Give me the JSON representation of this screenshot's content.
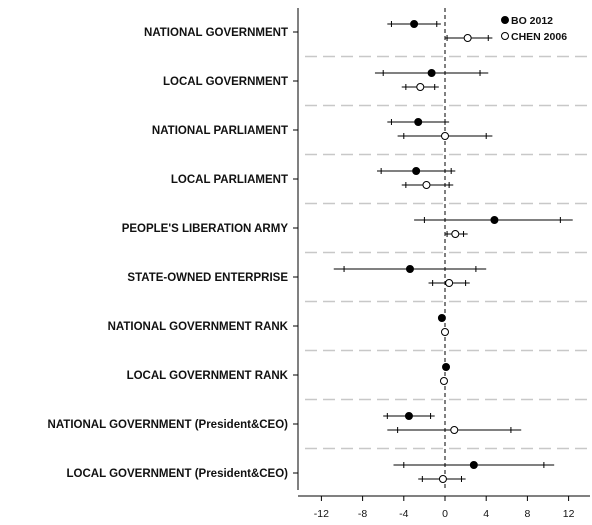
{
  "chart_data": {
    "type": "scatter",
    "subtype": "coefficient-plot-with-confidence-intervals",
    "orientation": "horizontal",
    "categories": [
      "NATIONAL GOVERNMENT",
      "LOCAL GOVERNMENT",
      "NATIONAL PARLIAMENT",
      "LOCAL PARLIAMENT",
      "PEOPLE'S LIBERATION ARMY",
      "STATE-OWNED ENTERPRISE",
      "NATIONAL GOVERNMENT RANK",
      "LOCAL GOVERNMENT RANK",
      "NATIONAL GOVERNMENT (President&CEO)",
      "LOCAL GOVERNMENT (President&CEO)"
    ],
    "series": [
      {
        "name": "BO 2012",
        "marker": "filled-circle",
        "color": "#000000",
        "points": [
          {
            "estimate": -3.0,
            "ci90": [
              -5.2,
              -0.8
            ],
            "ci95": [
              -5.6,
              -0.4
            ]
          },
          {
            "estimate": -1.3,
            "ci90": [
              -6.0,
              3.4
            ],
            "ci95": [
              -6.8,
              4.2
            ]
          },
          {
            "estimate": -2.6,
            "ci90": [
              -5.2,
              0.0
            ],
            "ci95": [
              -5.6,
              0.4
            ]
          },
          {
            "estimate": -2.8,
            "ci90": [
              -6.2,
              0.6
            ],
            "ci95": [
              -6.6,
              1.0
            ]
          },
          {
            "estimate": 4.8,
            "ci90": [
              -2.0,
              11.2
            ],
            "ci95": [
              -3.0,
              12.4
            ]
          },
          {
            "estimate": -3.4,
            "ci90": [
              -9.8,
              3.0
            ],
            "ci95": [
              -10.8,
              4.0
            ]
          },
          {
            "estimate": -0.3,
            "ci90": [
              -0.5,
              -0.1
            ],
            "ci95": [
              -0.6,
              0.0
            ]
          },
          {
            "estimate": 0.1,
            "ci90": [
              -0.1,
              0.3
            ],
            "ci95": [
              -0.2,
              0.4
            ]
          },
          {
            "estimate": -3.5,
            "ci90": [
              -5.6,
              -1.4
            ],
            "ci95": [
              -6.0,
              -1.0
            ]
          },
          {
            "estimate": 2.8,
            "ci90": [
              -4.0,
              9.6
            ],
            "ci95": [
              -5.0,
              10.6
            ]
          }
        ]
      },
      {
        "name": "CHEN 2006",
        "marker": "open-circle",
        "color": "#000000",
        "points": [
          {
            "estimate": 2.2,
            "ci90": [
              0.2,
              4.2
            ],
            "ci95": [
              0.0,
              4.6
            ]
          },
          {
            "estimate": -2.4,
            "ci90": [
              -3.8,
              -1.0
            ],
            "ci95": [
              -4.2,
              -0.6
            ]
          },
          {
            "estimate": 0.0,
            "ci90": [
              -4.0,
              4.0
            ],
            "ci95": [
              -4.6,
              4.6
            ]
          },
          {
            "estimate": -1.8,
            "ci90": [
              -3.8,
              0.4
            ],
            "ci95": [
              -4.2,
              0.8
            ]
          },
          {
            "estimate": 1.0,
            "ci90": [
              0.2,
              1.8
            ],
            "ci95": [
              0.0,
              2.2
            ]
          },
          {
            "estimate": 0.4,
            "ci90": [
              -1.2,
              2.0
            ],
            "ci95": [
              -1.6,
              2.4
            ]
          },
          {
            "estimate": 0.0,
            "ci90": [
              -0.1,
              0.1
            ],
            "ci95": [
              -0.15,
              0.15
            ]
          },
          {
            "estimate": -0.1,
            "ci90": [
              -0.2,
              0.0
            ],
            "ci95": [
              -0.25,
              0.05
            ]
          },
          {
            "estimate": 0.9,
            "ci90": [
              -4.6,
              6.4
            ],
            "ci95": [
              -5.6,
              7.4
            ]
          },
          {
            "estimate": -0.2,
            "ci90": [
              -2.2,
              1.6
            ],
            "ci95": [
              -2.6,
              2.0
            ]
          }
        ]
      }
    ],
    "x_ticks": [
      "-12",
      "-8",
      "-4",
      "0",
      "4",
      "8",
      "12"
    ],
    "xlim": [
      -14,
      14.5
    ],
    "reference_line": {
      "x": 0,
      "style": "dashed"
    },
    "category_separators": "dashed-gray",
    "legend": {
      "placement": "top-right",
      "entries": [
        "BO 2012",
        "CHEN 2006"
      ]
    },
    "title": "",
    "xlabel": "",
    "ylabel": "",
    "grid": false
  }
}
